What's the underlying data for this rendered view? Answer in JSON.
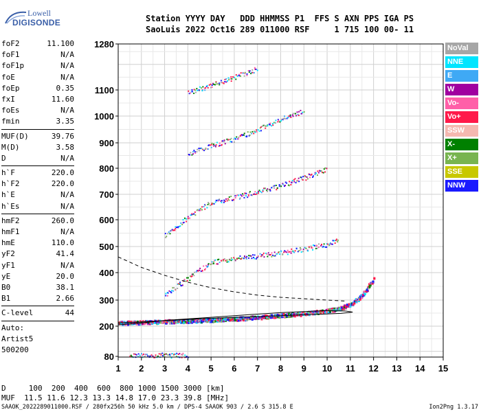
{
  "logo": {
    "line1": "Lowell",
    "line2": "DIGISONDE"
  },
  "header": {
    "line1": "Station YYYY DAY   DDD HHMMSS P1  FFS S AXN PPS IGA PS",
    "line2": "SaoLuis 2022 Oct16 289 011000 RSF     1 715 100 00- 11"
  },
  "params_group1": [
    {
      "name": "foF2",
      "value": "11.100"
    },
    {
      "name": "foF1",
      "value": "N/A"
    },
    {
      "name": "foF1p",
      "value": "N/A"
    },
    {
      "name": "foE",
      "value": "N/A"
    },
    {
      "name": "foEp",
      "value": "0.35"
    },
    {
      "name": "fxI",
      "value": "11.60"
    },
    {
      "name": "foEs",
      "value": "N/A"
    },
    {
      "name": "fmin",
      "value": "3.35"
    }
  ],
  "params_group2": [
    {
      "name": "MUF(D)",
      "value": "39.76"
    },
    {
      "name": "M(D)",
      "value": "3.58"
    },
    {
      "name": "D",
      "value": "N/A"
    }
  ],
  "params_group3": [
    {
      "name": "h`F",
      "value": "220.0"
    },
    {
      "name": "h`F2",
      "value": "220.0"
    },
    {
      "name": "h`E",
      "value": "N/A"
    },
    {
      "name": "h`Es",
      "value": "N/A"
    }
  ],
  "params_group4": [
    {
      "name": "hmF2",
      "value": "260.0"
    },
    {
      "name": "hmF1",
      "value": "N/A"
    },
    {
      "name": "hmE",
      "value": "110.0"
    },
    {
      "name": "yF2",
      "value": "41.4"
    },
    {
      "name": "yF1",
      "value": "N/A"
    },
    {
      "name": "yE",
      "value": "20.0"
    },
    {
      "name": "B0",
      "value": "38.1"
    },
    {
      "name": "B1",
      "value": "2.66"
    }
  ],
  "clevel": {
    "name": "C-level",
    "value": "44"
  },
  "auto": {
    "l1": "Auto:",
    "l2": "Artist5",
    "l3": "500200"
  },
  "legend": [
    {
      "label": "NoVal",
      "color": "#a6a6a6"
    },
    {
      "label": "NNE",
      "color": "#00e5ff"
    },
    {
      "label": "E",
      "color": "#3fa9f5"
    },
    {
      "label": "W",
      "color": "#a000a0"
    },
    {
      "label": "Vo-",
      "color": "#ff5fa8"
    },
    {
      "label": "Vo+",
      "color": "#ff1a4a"
    },
    {
      "label": "SSW",
      "color": "#f5b8b0"
    },
    {
      "label": "X-",
      "color": "#008000"
    },
    {
      "label": "X+",
      "color": "#78b450"
    },
    {
      "label": "SSE",
      "color": "#c8c800"
    },
    {
      "label": "NNW",
      "color": "#1a1aff"
    }
  ],
  "footer": {
    "line1": "D     100  200  400  600  800 1000 1500 3000 [km]",
    "line2": "MUF  11.5 11.6 12.3 13.3 14.8 17.0 23.3 39.8 [MHz]",
    "line3": "SAAOK_2022289011000.RSF / 280fx256h 50 kHz 5.0 km / DPS-4 SAAOK 903 / 2.6 S 315.8 E",
    "version": "Ion2Png 1.3.17"
  },
  "chart_data": {
    "type": "scatter",
    "xlim": [
      1,
      15
    ],
    "ylim": [
      80,
      1280
    ],
    "xticks": [
      "1",
      "2",
      "3",
      "4",
      "5",
      "6",
      "7",
      "8",
      "9",
      "10",
      "11",
      "12",
      "13",
      "14",
      "15"
    ],
    "yticks": [
      "80",
      "200",
      "300",
      "400",
      "500",
      "600",
      "700",
      "800",
      "900",
      "1000",
      "1100",
      "1280"
    ],
    "grid": true,
    "series": [
      {
        "values": [
          [
            1.0,
            214
          ],
          [
            2.0,
            217
          ],
          [
            3.0,
            220
          ],
          [
            4.0,
            222
          ],
          [
            5.0,
            226
          ],
          [
            6.0,
            230
          ],
          [
            7.0,
            236
          ],
          [
            8.0,
            243
          ],
          [
            9.0,
            250
          ],
          [
            10.0,
            262
          ],
          [
            10.5,
            270
          ],
          [
            11.0,
            285
          ],
          [
            11.5,
            320
          ],
          [
            12.0,
            380
          ]
        ]
      },
      {
        "values": [
          [
            3.0,
            320
          ],
          [
            4.0,
            380
          ],
          [
            5.0,
            440
          ],
          [
            6.0,
            455
          ],
          [
            7.0,
            465
          ],
          [
            8.0,
            478
          ],
          [
            9.0,
            492
          ],
          [
            10.0,
            510
          ],
          [
            10.5,
            525
          ]
        ]
      },
      {
        "values": [
          [
            3.0,
            540
          ],
          [
            4.0,
            610
          ],
          [
            5.0,
            670
          ],
          [
            6.0,
            690
          ],
          [
            7.0,
            710
          ],
          [
            8.0,
            735
          ],
          [
            9.0,
            765
          ],
          [
            10.0,
            800
          ]
        ]
      },
      {
        "values": [
          [
            4.0,
            860
          ],
          [
            5.0,
            890
          ],
          [
            6.0,
            915
          ],
          [
            7.0,
            950
          ],
          [
            8.0,
            990
          ],
          [
            9.0,
            1020
          ]
        ]
      },
      {
        "values": [
          [
            4.0,
            1090
          ],
          [
            5.0,
            1120
          ],
          [
            6.0,
            1150
          ],
          [
            7.0,
            1185
          ]
        ]
      },
      {
        "values": [
          [
            1.5,
            85
          ],
          [
            2.0,
            85
          ],
          [
            3.0,
            86
          ],
          [
            4.0,
            86
          ]
        ]
      }
    ],
    "curves": {
      "profile": [
        [
          1,
          205
        ],
        [
          2,
          212
        ],
        [
          3,
          222
        ],
        [
          4,
          228
        ],
        [
          5,
          234
        ],
        [
          6,
          240
        ],
        [
          7,
          246
        ],
        [
          8,
          252
        ],
        [
          9,
          256
        ],
        [
          10,
          260
        ],
        [
          10.8,
          258
        ],
        [
          11.1,
          254
        ],
        [
          10.6,
          249
        ],
        [
          9.5,
          245
        ],
        [
          8,
          240
        ],
        [
          6,
          234
        ],
        [
          4,
          226
        ],
        [
          2,
          216
        ],
        [
          1,
          212
        ]
      ],
      "muf": [
        [
          1,
          460
        ],
        [
          2,
          420
        ],
        [
          3,
          390
        ],
        [
          4,
          365
        ],
        [
          5,
          345
        ],
        [
          6,
          330
        ],
        [
          7,
          318
        ],
        [
          8,
          310
        ],
        [
          9,
          305
        ],
        [
          10,
          300
        ],
        [
          10.8,
          296
        ]
      ]
    }
  }
}
